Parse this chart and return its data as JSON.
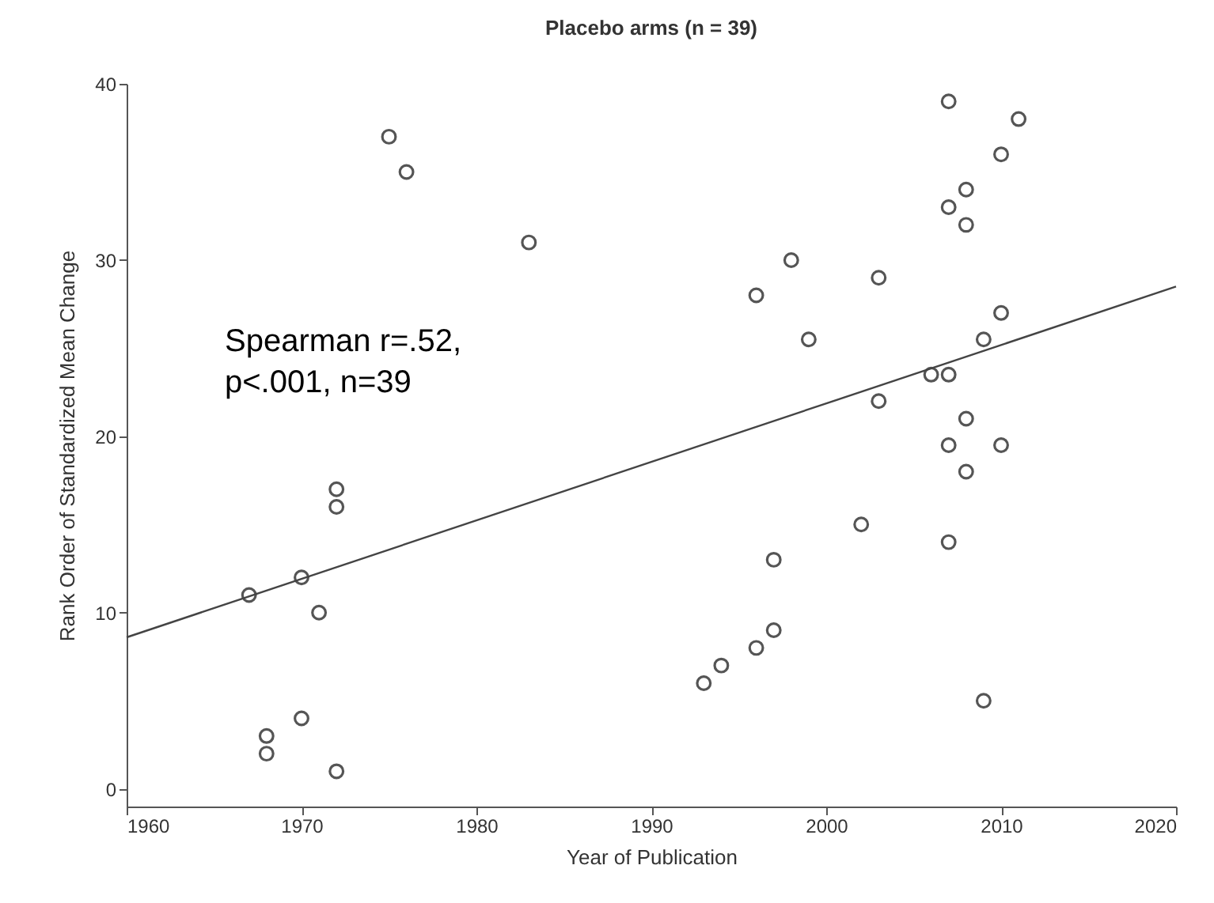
{
  "chart_data": {
    "type": "scatter",
    "title": "Placebo arms (n = 39)",
    "xlabel": "Year of Publication",
    "ylabel": "Rank Order of Standardized Mean Change",
    "xlim": [
      1960,
      2020
    ],
    "xticks": [
      1960,
      1970,
      1980,
      1990,
      2000,
      2010,
      2020
    ],
    "ylim": [
      -1,
      40
    ],
    "yticks": [
      0,
      10,
      20,
      30,
      40
    ],
    "grid": false,
    "annotations": [
      "Spearman r=.52,\np<.001, n=39"
    ],
    "series": [
      {
        "color": "#555555",
        "marker": "circle",
        "x": [
          1967,
          1968,
          1968,
          1970,
          1970,
          1971,
          1972,
          1972,
          1972,
          1975,
          1976,
          1983,
          1993,
          1994,
          1996,
          1997,
          1997,
          1996,
          1998,
          1999,
          2003,
          2003,
          2002,
          2006,
          2007,
          2007,
          2007,
          2007,
          2007,
          2008,
          2008,
          2008,
          2008,
          2009,
          2009,
          2010,
          2010,
          2010,
          2011
        ],
        "values": [
          11,
          3,
          2,
          12,
          4,
          10,
          1,
          17,
          16,
          37,
          35,
          31,
          6,
          7,
          8,
          9,
          13,
          28,
          30,
          25.5,
          29,
          22,
          15,
          23.5,
          23.5,
          39,
          33,
          19.5,
          14,
          34,
          32,
          21,
          18,
          25.5,
          5,
          36,
          27,
          19.5,
          38
        ]
      },
      {
        "type": "line",
        "color": "#444444",
        "x": [
          1960,
          2020
        ],
        "values": [
          8.6,
          28.5
        ]
      }
    ]
  }
}
